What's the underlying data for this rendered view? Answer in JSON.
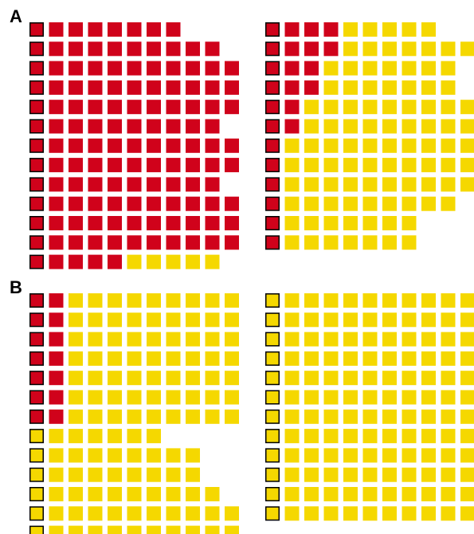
{
  "panels": [
    {
      "label": "A",
      "grids": [
        {
          "rows": [
            [
              8,
              0
            ],
            [
              10,
              0
            ],
            [
              11,
              0
            ],
            [
              11,
              0
            ],
            [
              11,
              0
            ],
            [
              10,
              0
            ],
            [
              11,
              0
            ],
            [
              11,
              0
            ],
            [
              10,
              0
            ],
            [
              11,
              0
            ],
            [
              11,
              0
            ],
            [
              11,
              0
            ],
            [
              5,
              5
            ]
          ]
        },
        {
          "rows": [
            [
              4,
              5
            ],
            [
              4,
              7
            ],
            [
              3,
              7
            ],
            [
              3,
              7
            ],
            [
              2,
              9
            ],
            [
              2,
              9
            ],
            [
              1,
              10
            ],
            [
              1,
              10
            ],
            [
              1,
              10
            ],
            [
              1,
              9
            ],
            [
              1,
              7
            ],
            [
              1,
              7
            ]
          ]
        }
      ]
    },
    {
      "label": "B",
      "grids": [
        {
          "rows": [
            [
              2,
              9
            ],
            [
              2,
              9
            ],
            [
              2,
              9
            ],
            [
              2,
              9
            ],
            [
              2,
              9
            ],
            [
              2,
              9
            ],
            [
              2,
              9
            ],
            [
              0,
              7
            ],
            [
              0,
              9
            ],
            [
              0,
              9
            ],
            [
              0,
              10
            ],
            [
              0,
              11
            ],
            [
              0,
              11
            ]
          ]
        },
        {
          "rows": [
            [
              0,
              11
            ],
            [
              0,
              11
            ],
            [
              0,
              11
            ],
            [
              0,
              11
            ],
            [
              0,
              11
            ],
            [
              0,
              11
            ],
            [
              0,
              11
            ],
            [
              0,
              11
            ],
            [
              0,
              11
            ],
            [
              0,
              11
            ],
            [
              0,
              11
            ],
            [
              0,
              11
            ]
          ]
        }
      ]
    }
  ],
  "colors": {
    "red": "#d0021b",
    "yellow": "#f5d800"
  }
}
